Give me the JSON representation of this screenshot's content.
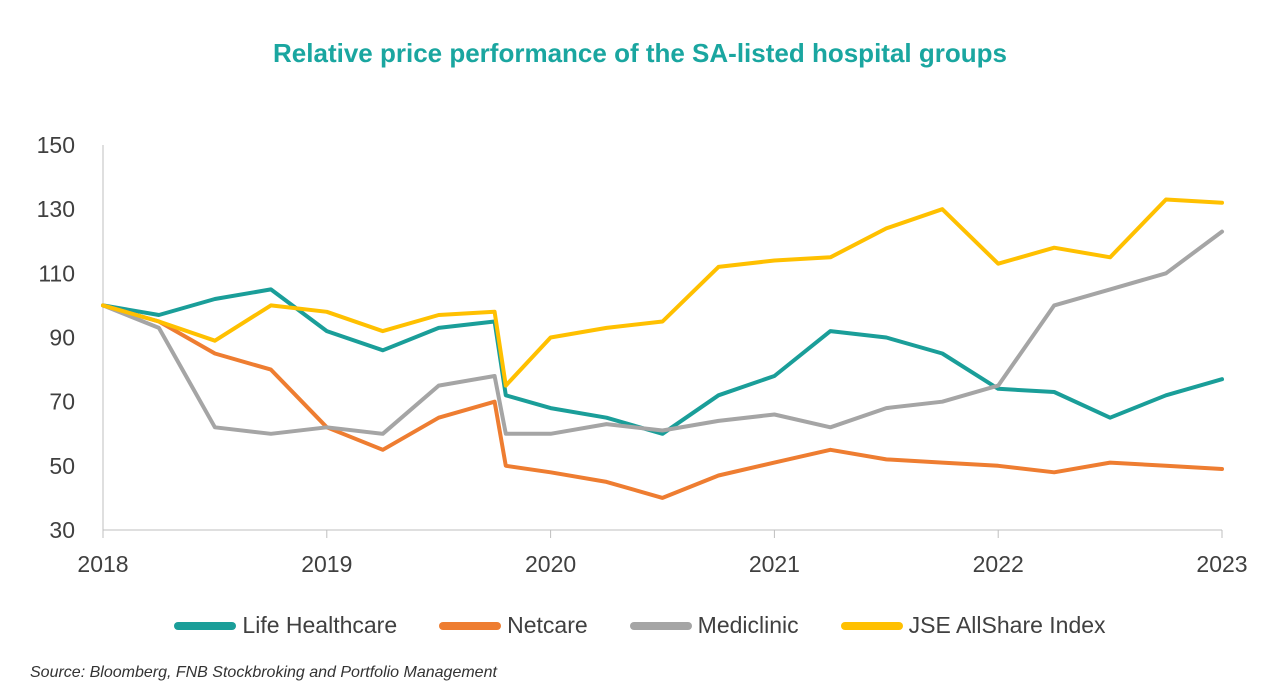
{
  "chart_data": {
    "type": "line",
    "title": "Relative price performance of the SA-listed hospital groups",
    "xlabel": "",
    "ylabel": "",
    "x_ticks": [
      "2018",
      "2019",
      "2020",
      "2021",
      "2022",
      "2023"
    ],
    "y_ticks": [
      30,
      50,
      70,
      90,
      110,
      130,
      150
    ],
    "ylim": [
      30,
      150
    ],
    "xlim": [
      2018,
      2023
    ],
    "legend_position": "bottom",
    "grid": false,
    "x": [
      2018.0,
      2018.25,
      2018.5,
      2018.75,
      2019.0,
      2019.25,
      2019.5,
      2019.75,
      2019.8,
      2020.0,
      2020.25,
      2020.5,
      2020.75,
      2021.0,
      2021.25,
      2021.5,
      2021.75,
      2022.0,
      2022.25,
      2022.5,
      2022.75,
      2023.0
    ],
    "series": [
      {
        "name": "Life Healthcare",
        "color": "#1a9e99",
        "values": [
          100,
          97,
          102,
          105,
          92,
          86,
          93,
          95,
          72,
          68,
          65,
          60,
          72,
          78,
          92,
          90,
          85,
          74,
          73,
          65,
          72,
          77
        ]
      },
      {
        "name": "Netcare",
        "color": "#ee7d31",
        "values": [
          100,
          95,
          85,
          80,
          62,
          55,
          65,
          70,
          50,
          48,
          45,
          40,
          47,
          51,
          55,
          52,
          51,
          50,
          48,
          51,
          50,
          49
        ]
      },
      {
        "name": "Mediclinic",
        "color": "#a5a5a5",
        "values": [
          100,
          93,
          62,
          60,
          62,
          60,
          75,
          78,
          60,
          60,
          63,
          61,
          64,
          66,
          62,
          68,
          70,
          75,
          100,
          105,
          110,
          123
        ]
      },
      {
        "name": "JSE AllShare Index",
        "color": "#ffc000",
        "values": [
          100,
          95,
          89,
          100,
          98,
          92,
          97,
          98,
          75,
          90,
          93,
          95,
          112,
          114,
          115,
          124,
          130,
          113,
          118,
          115,
          133,
          132
        ]
      }
    ]
  },
  "source": "Source: Bloomberg, FNB Stockbroking and Portfolio Management"
}
